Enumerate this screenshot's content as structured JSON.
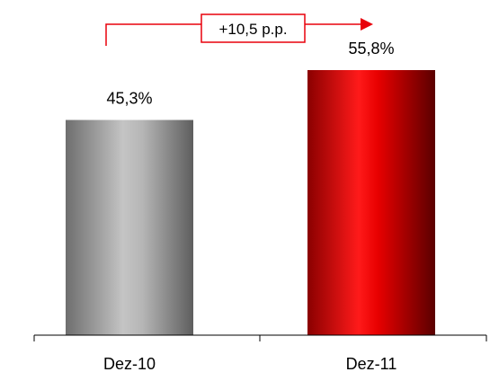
{
  "chart_data": {
    "type": "bar",
    "categories": [
      "Dez-10",
      "Dez-11"
    ],
    "values": [
      45.3,
      55.8
    ],
    "value_labels": [
      "45,3%",
      "55,8%"
    ],
    "ylim": [
      0,
      70
    ],
    "grid": false,
    "legend": "none",
    "annotation": {
      "text": "+10,5 p.p.",
      "from": "Dez-10",
      "to": "Dez-11"
    },
    "colors": {
      "bar_0": "#9c9c9c",
      "bar_1": "#d40000",
      "annotation": "#e8000b",
      "axis": "#000000"
    }
  }
}
